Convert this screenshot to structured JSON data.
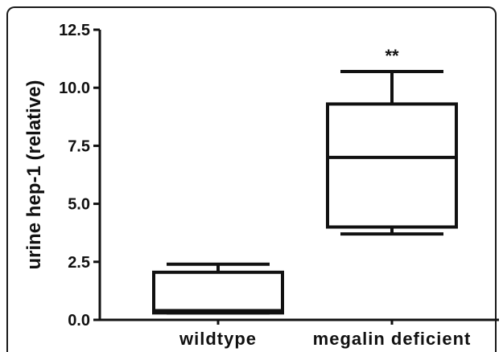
{
  "chart_data": {
    "type": "box",
    "ylabel": "urine hep-1 (relative)",
    "ylim": [
      0,
      12.5
    ],
    "yticks": [
      "0.0",
      "2.5",
      "5.0",
      "7.5",
      "10.0",
      "12.5"
    ],
    "categories": [
      "wildtype",
      "megalin deficient"
    ],
    "boxes": [
      {
        "category": "wildtype",
        "whisker_low": 0.3,
        "q1": 0.3,
        "median": 0.4,
        "q3": 2.05,
        "whisker_high": 2.4,
        "annotation": ""
      },
      {
        "category": "megalin deficient",
        "whisker_low": 3.7,
        "q1": 4.0,
        "median": 7.0,
        "q3": 9.3,
        "whisker_high": 10.7,
        "annotation": "**"
      }
    ],
    "grid": false,
    "legend": "none"
  }
}
